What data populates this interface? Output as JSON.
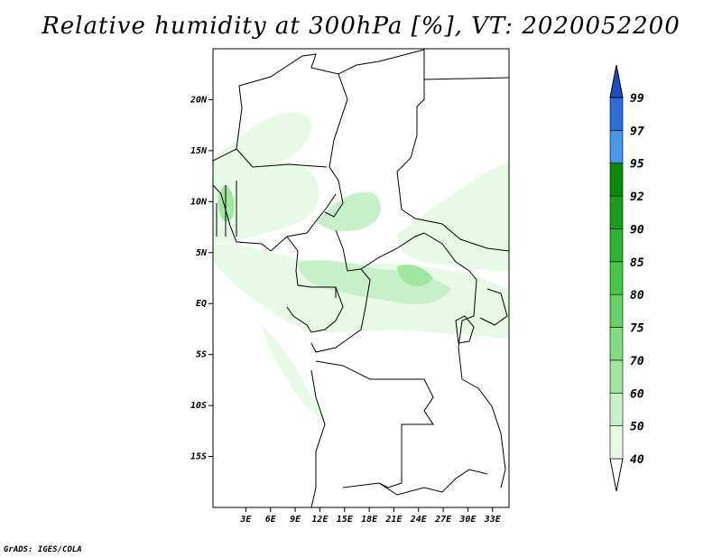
{
  "title": "Relative humidity at 300hPa [%], VT: 2020052200",
  "footer": "GrADS: IGES/COLA",
  "map": {
    "lon_range": [
      -1,
      35
    ],
    "lat_range": [
      -20,
      25
    ],
    "lat_ticks": [
      {
        "value": 20,
        "label": "20N"
      },
      {
        "value": 15,
        "label": "15N"
      },
      {
        "value": 10,
        "label": "10N"
      },
      {
        "value": 5,
        "label": "5N"
      },
      {
        "value": 0,
        "label": "EQ"
      },
      {
        "value": -5,
        "label": "5S"
      },
      {
        "value": -10,
        "label": "10S"
      },
      {
        "value": -15,
        "label": "15S"
      }
    ],
    "lon_ticks": [
      {
        "value": 3,
        "label": "3E"
      },
      {
        "value": 6,
        "label": "6E"
      },
      {
        "value": 9,
        "label": "9E"
      },
      {
        "value": 12,
        "label": "12E"
      },
      {
        "value": 15,
        "label": "15E"
      },
      {
        "value": 18,
        "label": "18E"
      },
      {
        "value": 21,
        "label": "21E"
      },
      {
        "value": 24,
        "label": "24E"
      },
      {
        "value": 27,
        "label": "27E"
      },
      {
        "value": 30,
        "label": "30E"
      },
      {
        "value": 33,
        "label": "33E"
      }
    ]
  },
  "colorbar": {
    "levels": [
      "40",
      "50",
      "60",
      "70",
      "75",
      "80",
      "85",
      "90",
      "92",
      "95",
      "97",
      "99"
    ],
    "colors": [
      "#ffffff",
      "#e6fae6",
      "#c8f0c8",
      "#a0e6a0",
      "#82dc82",
      "#64d264",
      "#46c846",
      "#2eb42e",
      "#1a9e1a",
      "#0a8c0a",
      "#4a96e6",
      "#2a6ed6",
      "#1a4ec2"
    ]
  }
}
